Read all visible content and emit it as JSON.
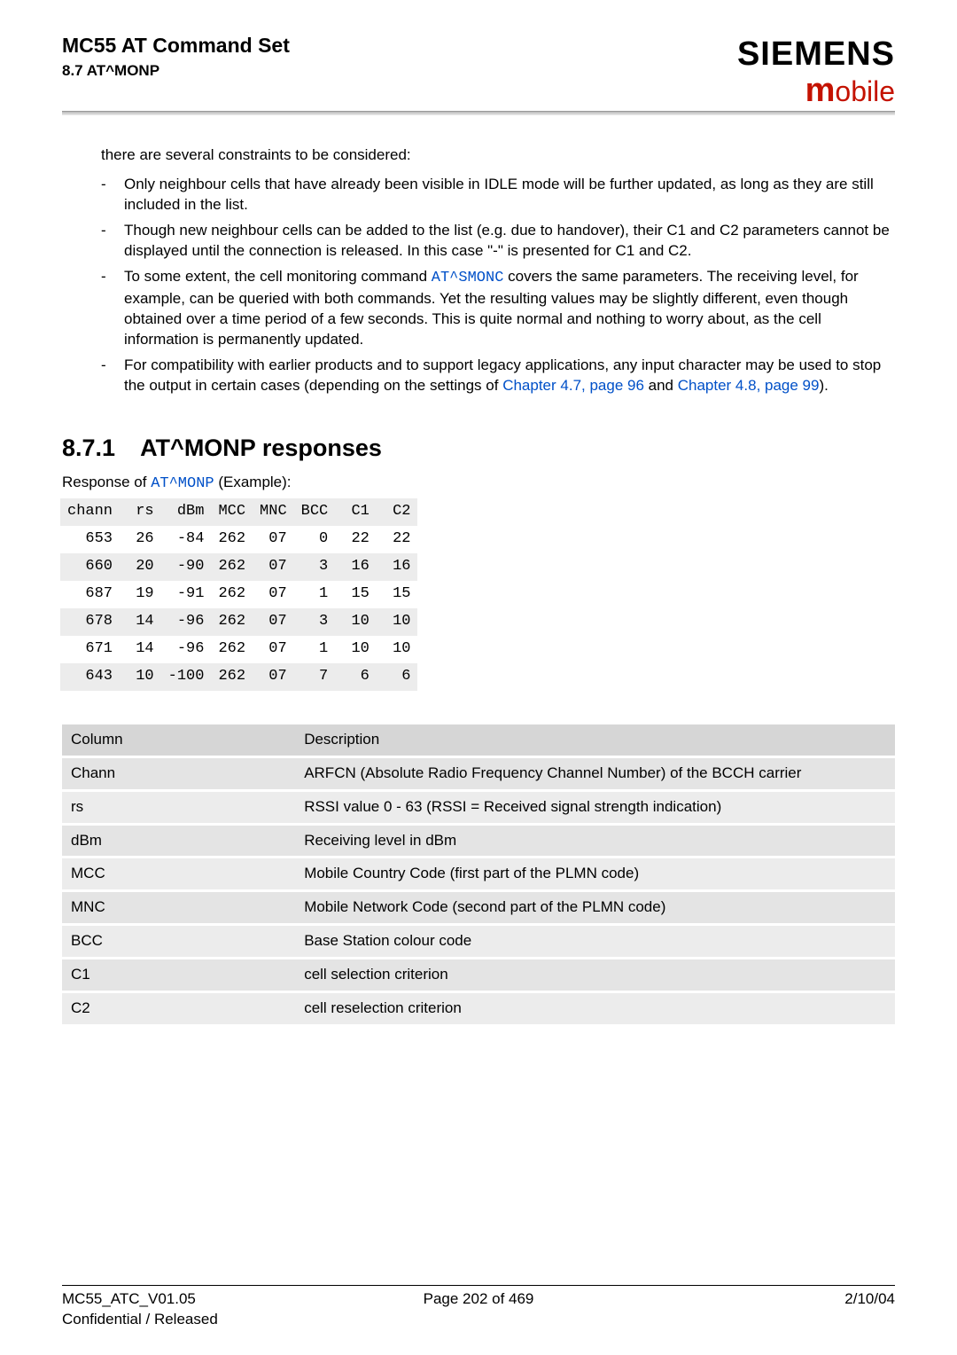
{
  "header": {
    "title": "MC55 AT Command Set",
    "subtitle": "8.7 AT^MONP",
    "brand": "SIEMENS",
    "mobile_m": "m",
    "mobile_rest": "obile"
  },
  "intro": "there are several constraints to be considered:",
  "bullets": [
    "Only neighbour cells that have already been visible in IDLE mode will be further updated, as long as they are still included in the list.",
    "Though new neighbour cells can be added to the list (e.g. due to handover), their C1 and C2 parameters cannot be displayed until the connection is released. In this case \"-\" is presented for C1 and C2."
  ],
  "bullet3": {
    "pre": "To some extent, the cell monitoring command ",
    "cmd": "AT^SMONC",
    "post": " covers the same parameters. The receiving level, for example, can be queried with both commands. Yet the resulting values may be slightly different, even though obtained over a time period of a few seconds. This is quite normal and nothing to worry about, as the cell information is permanently updated."
  },
  "bullet4": {
    "pre": "For compatibility with earlier products and to support legacy applications, any input character may be used to stop the output in certain cases (depending on the settings of ",
    "link1": "Chapter 4.7, page 96",
    "mid": " and ",
    "link2": "Chapter 4.8, page 99",
    "post": ")."
  },
  "section": {
    "num": "8.7.1",
    "title": "AT^MONP responses"
  },
  "resp_intro": {
    "pre": "Response of ",
    "cmd": "AT^MONP",
    "post": " (Example):"
  },
  "resp_table": {
    "headers": [
      "chann",
      "rs",
      " dBm",
      "MCC",
      "MNC",
      "BCC",
      " C1",
      " C2"
    ],
    "rows": [
      [
        " 653",
        " 26",
        " -84",
        "262",
        " 07",
        "  0",
        " 22",
        " 22"
      ],
      [
        " 660",
        " 20",
        " -90",
        "262",
        " 07",
        "  3",
        " 16",
        " 16"
      ],
      [
        " 687",
        " 19",
        " -91",
        "262",
        " 07",
        "  1",
        " 15",
        " 15"
      ],
      [
        " 678",
        " 14",
        " -96",
        "262",
        " 07",
        "  3",
        " 10",
        " 10"
      ],
      [
        " 671",
        " 14",
        " -96",
        "262",
        " 07",
        "  1",
        " 10",
        " 10"
      ],
      [
        " 643",
        " 10",
        "-100",
        "262",
        " 07",
        "  7",
        "  6",
        "  6"
      ]
    ]
  },
  "cols_table": {
    "headers": [
      "Column",
      "Description"
    ],
    "rows": [
      [
        "Chann",
        "ARFCN (Absolute Radio Frequency Channel Number) of the BCCH carrier"
      ],
      [
        "rs",
        "RSSI value 0 - 63 (RSSI = Received signal strength indication)"
      ],
      [
        "dBm",
        "Receiving level in dBm"
      ],
      [
        "MCC",
        "Mobile Country Code (first part of the PLMN code)"
      ],
      [
        "MNC",
        "Mobile Network Code (second part of the PLMN code)"
      ],
      [
        "BCC",
        "Base Station colour code"
      ],
      [
        "C1",
        "cell selection criterion"
      ],
      [
        "C2",
        "cell reselection criterion"
      ]
    ]
  },
  "footer": {
    "left1": "MC55_ATC_V01.05",
    "left2": "Confidential / Released",
    "center": "Page 202 of 469",
    "right": "2/10/04"
  }
}
